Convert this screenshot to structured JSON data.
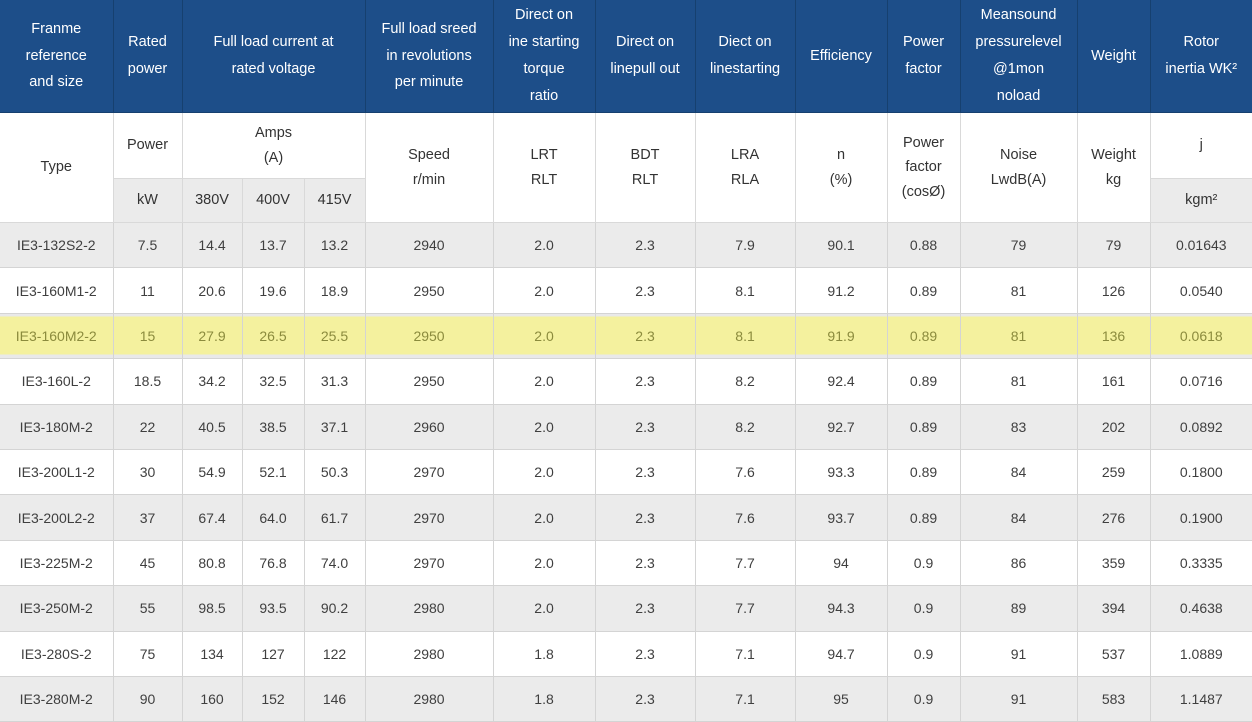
{
  "colors": {
    "header_bg": "#1d4e89",
    "header_text": "#ffffff",
    "stripe_bg": "#ebebeb",
    "highlight_bg": "#f4f19e",
    "highlight_text": "#8b8b3d",
    "body_text": "#3f3f3f"
  },
  "table": {
    "header1": {
      "frame": "Franme\nreference\nand size",
      "rated_power": "Rated\npower",
      "full_load_current": "Full load current at\nrated voltage",
      "full_load_speed": "Full load sreed\nin revolutions\nper minute",
      "direct_torque": "Direct on\nine starting\ntorque\nratio",
      "direct_pullout": "Direct on\nlinepull out",
      "direct_starting": "Diect on\nlinestarting",
      "efficiency": "Efficiency",
      "power_factor": "Power\nfactor",
      "noise": "Meansound\npressurelevel\n@1mon\nnoload",
      "weight": "Weight",
      "rotor_inertia": "Rotor\ninertia WK²"
    },
    "header2": {
      "type": "Type",
      "power": "Power",
      "amps": "Amps\n(A)",
      "speed": "Speed\nr/min",
      "lrt": "LRT\nRLT",
      "bdt": "BDT\nRLT",
      "lra": "LRA\nRLA",
      "n": "n\n(%)",
      "pf": "Power\nfactor\n(cosØ)",
      "noise": "Noise\nLwdB(A)",
      "weight": "Weight\nkg",
      "j": "j"
    },
    "header3": {
      "kw": "kW",
      "v380": "380V",
      "v400": "400V",
      "v415": "415V",
      "kgm2": "kgm²"
    },
    "col_keys": [
      "type",
      "power-kw",
      "amps-380v",
      "amps-400v",
      "amps-415v",
      "speed-rpm",
      "lrt-rlt",
      "bdt-rlt",
      "lra-rla",
      "efficiency-pct",
      "power-factor",
      "noise-lwdba",
      "weight-kg",
      "rotor-inertia-kgm2"
    ],
    "highlighted_row_index": 2,
    "rows": [
      [
        "IE3-132S2-2",
        "7.5",
        "14.4",
        "13.7",
        "13.2",
        "2940",
        "2.0",
        "2.3",
        "7.9",
        "90.1",
        "0.88",
        "79",
        "79",
        "0.01643"
      ],
      [
        "IE3-160M1-2",
        "11",
        "20.6",
        "19.6",
        "18.9",
        "2950",
        "2.0",
        "2.3",
        "8.1",
        "91.2",
        "0.89",
        "81",
        "126",
        "0.0540"
      ],
      [
        "IE3-160M2-2",
        "15",
        "27.9",
        "26.5",
        "25.5",
        "2950",
        "2.0",
        "2.3",
        "8.1",
        "91.9",
        "0.89",
        "81",
        "136",
        "0.0618"
      ],
      [
        "IE3-160L-2",
        "18.5",
        "34.2",
        "32.5",
        "31.3",
        "2950",
        "2.0",
        "2.3",
        "8.2",
        "92.4",
        "0.89",
        "81",
        "161",
        "0.0716"
      ],
      [
        "IE3-180M-2",
        "22",
        "40.5",
        "38.5",
        "37.1",
        "2960",
        "2.0",
        "2.3",
        "8.2",
        "92.7",
        "0.89",
        "83",
        "202",
        "0.0892"
      ],
      [
        "IE3-200L1-2",
        "30",
        "54.9",
        "52.1",
        "50.3",
        "2970",
        "2.0",
        "2.3",
        "7.6",
        "93.3",
        "0.89",
        "84",
        "259",
        "0.1800"
      ],
      [
        "IE3-200L2-2",
        "37",
        "67.4",
        "64.0",
        "61.7",
        "2970",
        "2.0",
        "2.3",
        "7.6",
        "93.7",
        "0.89",
        "84",
        "276",
        "0.1900"
      ],
      [
        "IE3-225M-2",
        "45",
        "80.8",
        "76.8",
        "74.0",
        "2970",
        "2.0",
        "2.3",
        "7.7",
        "94",
        "0.9",
        "86",
        "359",
        "0.3335"
      ],
      [
        "IE3-250M-2",
        "55",
        "98.5",
        "93.5",
        "90.2",
        "2980",
        "2.0",
        "2.3",
        "7.7",
        "94.3",
        "0.9",
        "89",
        "394",
        "0.4638"
      ],
      [
        "IE3-280S-2",
        "75",
        "134",
        "127",
        "122",
        "2980",
        "1.8",
        "2.3",
        "7.1",
        "94.7",
        "0.9",
        "91",
        "537",
        "1.0889"
      ],
      [
        "IE3-280M-2",
        "90",
        "160",
        "152",
        "146",
        "2980",
        "1.8",
        "2.3",
        "7.1",
        "95",
        "0.9",
        "91",
        "583",
        "1.1487"
      ]
    ]
  }
}
